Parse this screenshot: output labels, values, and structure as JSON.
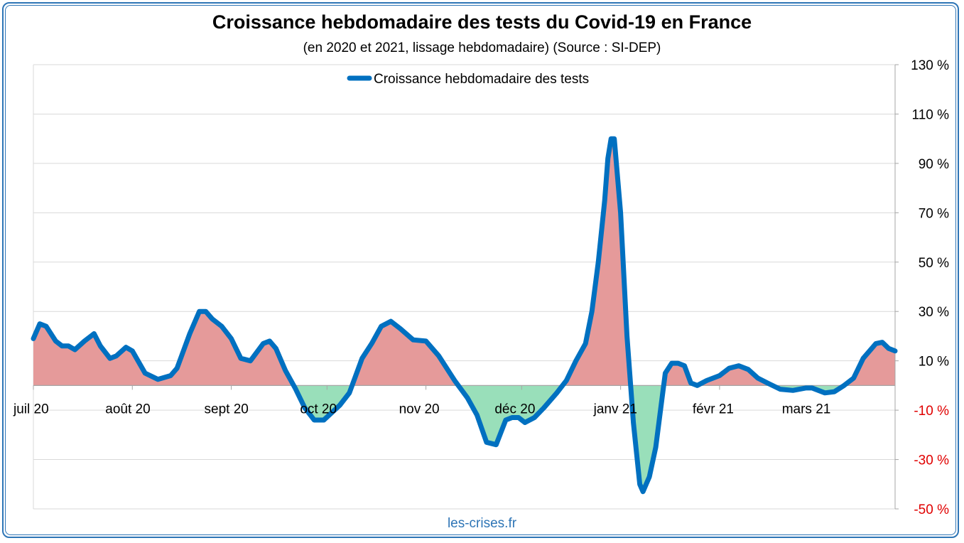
{
  "header": {
    "title": "Croissance hebdomadaire des tests du Covid-19 en France",
    "subtitle": "(en 2020 et 2021, lissage hebdomadaire) (Source : SI-DEP)"
  },
  "footer": {
    "source": "les-crises.fr"
  },
  "colors": {
    "line": "#0070c0",
    "positive_fill": "#e59a9a",
    "negative_fill": "#99dfba",
    "grid": "#d9d9d9",
    "negative_tick": "#e00000",
    "positive_tick": "#000000",
    "frame": "#2e75b6"
  },
  "chart_data": {
    "type": "area",
    "legend": {
      "position": "top",
      "entries": [
        "Croissance hebdomadaire des tests"
      ]
    },
    "x_tick_labels": [
      "juil 20",
      "août 20",
      "sept 20",
      "oct 20",
      "nov 20",
      "déc 20",
      "janv 21",
      "févr 21",
      "mars 21"
    ],
    "x_ticks_dates": [
      "2020-07-01",
      "2020-08-01",
      "2020-09-01",
      "2020-10-01",
      "2020-11-01",
      "2020-12-01",
      "2021-01-01",
      "2021-02-01",
      "2021-03-01"
    ],
    "xlim": [
      "2020-07-01",
      "2021-03-28"
    ],
    "y_axis": {
      "side": "right",
      "ylim": [
        -50,
        130
      ],
      "tick_values": [
        -50,
        -30,
        -10,
        10,
        30,
        50,
        70,
        90,
        110,
        130
      ],
      "tick_labels": [
        "-50 %",
        "-30 %",
        "-10 %",
        "10 %",
        "30 %",
        "50 %",
        "70 %",
        "90 %",
        "110 %",
        "130 %"
      ],
      "unit": "%"
    },
    "grid": true,
    "series": [
      {
        "name": "Croissance hebdomadaire des tests",
        "fill": "red above zero, green below zero",
        "points": [
          [
            "2020-07-01",
            19
          ],
          [
            "2020-07-03",
            25
          ],
          [
            "2020-07-05",
            24
          ],
          [
            "2020-07-08",
            18
          ],
          [
            "2020-07-10",
            16
          ],
          [
            "2020-07-12",
            16
          ],
          [
            "2020-07-14",
            14.5
          ],
          [
            "2020-07-17",
            18
          ],
          [
            "2020-07-20",
            21
          ],
          [
            "2020-07-22",
            16
          ],
          [
            "2020-07-25",
            11
          ],
          [
            "2020-07-27",
            12
          ],
          [
            "2020-07-30",
            15.5
          ],
          [
            "2020-08-01",
            14
          ],
          [
            "2020-08-05",
            5
          ],
          [
            "2020-08-09",
            2.5
          ],
          [
            "2020-08-13",
            4
          ],
          [
            "2020-08-15",
            7
          ],
          [
            "2020-08-19",
            21
          ],
          [
            "2020-08-22",
            30
          ],
          [
            "2020-08-24",
            30
          ],
          [
            "2020-08-26",
            27
          ],
          [
            "2020-08-29",
            24
          ],
          [
            "2020-09-01",
            19
          ],
          [
            "2020-09-04",
            11
          ],
          [
            "2020-09-07",
            10
          ],
          [
            "2020-09-11",
            17
          ],
          [
            "2020-09-13",
            18
          ],
          [
            "2020-09-15",
            15
          ],
          [
            "2020-09-18",
            6
          ],
          [
            "2020-09-21",
            -1
          ],
          [
            "2020-09-24",
            -9
          ],
          [
            "2020-09-27",
            -14
          ],
          [
            "2020-09-30",
            -14
          ],
          [
            "2020-10-05",
            -8
          ],
          [
            "2020-10-08",
            -3
          ],
          [
            "2020-10-12",
            11
          ],
          [
            "2020-10-15",
            17
          ],
          [
            "2020-10-18",
            24
          ],
          [
            "2020-10-21",
            26
          ],
          [
            "2020-10-24",
            23
          ],
          [
            "2020-10-28",
            18.5
          ],
          [
            "2020-11-01",
            18
          ],
          [
            "2020-11-05",
            12
          ],
          [
            "2020-11-10",
            2
          ],
          [
            "2020-11-14",
            -5
          ],
          [
            "2020-11-17",
            -12
          ],
          [
            "2020-11-20",
            -23
          ],
          [
            "2020-11-23",
            -24
          ],
          [
            "2020-11-26",
            -14
          ],
          [
            "2020-11-28",
            -13
          ],
          [
            "2020-11-30",
            -13
          ],
          [
            "2020-12-02",
            -15
          ],
          [
            "2020-12-05",
            -13
          ],
          [
            "2020-12-08",
            -9
          ],
          [
            "2020-12-12",
            -3
          ],
          [
            "2020-12-15",
            2
          ],
          [
            "2020-12-18",
            10
          ],
          [
            "2020-12-21",
            17
          ],
          [
            "2020-12-23",
            30
          ],
          [
            "2020-12-25",
            50
          ],
          [
            "2020-12-27",
            75
          ],
          [
            "2020-12-28",
            92
          ],
          [
            "2020-12-29",
            100
          ],
          [
            "2020-12-30",
            100
          ],
          [
            "2021-01-01",
            70
          ],
          [
            "2021-01-03",
            20
          ],
          [
            "2021-01-05",
            -15
          ],
          [
            "2021-01-07",
            -40
          ],
          [
            "2021-01-08",
            -43
          ],
          [
            "2021-01-10",
            -37
          ],
          [
            "2021-01-12",
            -25
          ],
          [
            "2021-01-14",
            -5
          ],
          [
            "2021-01-15",
            5
          ],
          [
            "2021-01-17",
            9
          ],
          [
            "2021-01-19",
            9
          ],
          [
            "2021-01-21",
            8
          ],
          [
            "2021-01-23",
            1
          ],
          [
            "2021-01-25",
            0
          ],
          [
            "2021-01-28",
            2
          ],
          [
            "2021-02-01",
            4
          ],
          [
            "2021-02-04",
            7
          ],
          [
            "2021-02-07",
            8
          ],
          [
            "2021-02-10",
            6.5
          ],
          [
            "2021-02-13",
            3
          ],
          [
            "2021-02-16",
            1
          ],
          [
            "2021-02-20",
            -1.5
          ],
          [
            "2021-02-24",
            -2
          ],
          [
            "2021-02-28",
            -1
          ],
          [
            "2021-03-02",
            -1
          ],
          [
            "2021-03-06",
            -3
          ],
          [
            "2021-03-09",
            -2.5
          ],
          [
            "2021-03-12",
            0
          ],
          [
            "2021-03-15",
            3
          ],
          [
            "2021-03-18",
            11
          ],
          [
            "2021-03-22",
            17
          ],
          [
            "2021-03-24",
            17.5
          ],
          [
            "2021-03-26",
            15
          ],
          [
            "2021-03-28",
            14
          ]
        ]
      }
    ]
  }
}
